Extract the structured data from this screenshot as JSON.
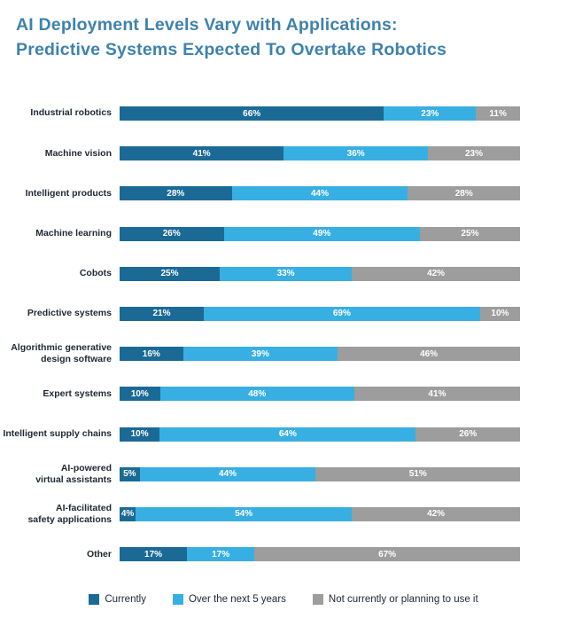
{
  "title": {
    "line1": "AI Deployment Levels Vary with Applications:",
    "line2": "Predictive Systems Expected To Overtake Robotics"
  },
  "colors": {
    "title": "#3e82ad",
    "category_label": "#1f2733",
    "value_label": "#ffffff",
    "currently": "#1b6a96",
    "next_5_years": "#38afe2",
    "not_planning": "#9d9d9d"
  },
  "legend": [
    {
      "label": "Currently",
      "color": "#1b6a96"
    },
    {
      "label": "Over the next 5 years",
      "color": "#38afe2"
    },
    {
      "label": "Not currently or planning to use it",
      "color": "#9d9d9d"
    }
  ],
  "chart_data": {
    "type": "bar",
    "orientation": "horizontal",
    "stacked": true,
    "unit": "%",
    "title": "AI Deployment Levels Vary with Applications: Predictive Systems Expected To Overtake Robotics",
    "legend_position": "bottom",
    "categories": [
      "Industrial robotics",
      "Machine vision",
      "Intelligent products",
      "Machine learning",
      "Cobots",
      "Predictive systems",
      "Algorithmic generative\ndesign software",
      "Expert systems",
      "Intelligent supply chains",
      "AI-powered\nvirtual assistants",
      "AI-facilitated\nsafety applications",
      "Other"
    ],
    "series": [
      {
        "name": "Currently",
        "values": [
          66,
          41,
          28,
          26,
          25,
          21,
          16,
          10,
          10,
          5,
          4,
          17
        ]
      },
      {
        "name": "Over the next 5 years",
        "values": [
          23,
          36,
          44,
          49,
          33,
          69,
          39,
          48,
          64,
          44,
          54,
          17
        ]
      },
      {
        "name": "Not currently or planning to use it",
        "values": [
          11,
          23,
          28,
          25,
          42,
          10,
          46,
          41,
          26,
          51,
          42,
          67
        ]
      }
    ]
  }
}
